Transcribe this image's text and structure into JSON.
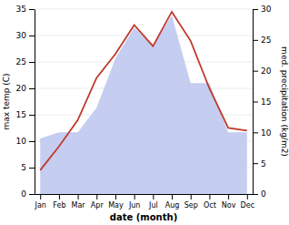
{
  "chart_data": {
    "type": "line",
    "categories": [
      "Jan",
      "Feb",
      "Mar",
      "Apr",
      "May",
      "Jun",
      "Jul",
      "Aug",
      "Sep",
      "Oct",
      "Nov",
      "Dec"
    ],
    "series": [
      {
        "type": "area",
        "axis": "y2",
        "color": "#c5cdf0",
        "values": [
          9.0,
          10.0,
          10.0,
          14.0,
          22.0,
          27.0,
          24.0,
          29.0,
          18.0,
          18.0,
          10.0,
          10.0
        ]
      },
      {
        "type": "line",
        "color": "#c0392b",
        "values": [
          4.5,
          9.0,
          14.0,
          22.0,
          26.5,
          32.0,
          28.0,
          34.5,
          29.0,
          20.0,
          12.5,
          12.0
        ]
      }
    ],
    "xlabel": "date (month)",
    "ylabel": "max temp (C)",
    "y2label": "med. precipitation (kg/m2)",
    "ylim": [
      0,
      35
    ],
    "yticks": [
      0,
      5,
      10,
      15,
      20,
      25,
      30,
      35
    ],
    "y2lim": [
      0,
      30
    ],
    "y2ticks": [
      0,
      5,
      10,
      15,
      20,
      25,
      30
    ],
    "grid": true
  }
}
